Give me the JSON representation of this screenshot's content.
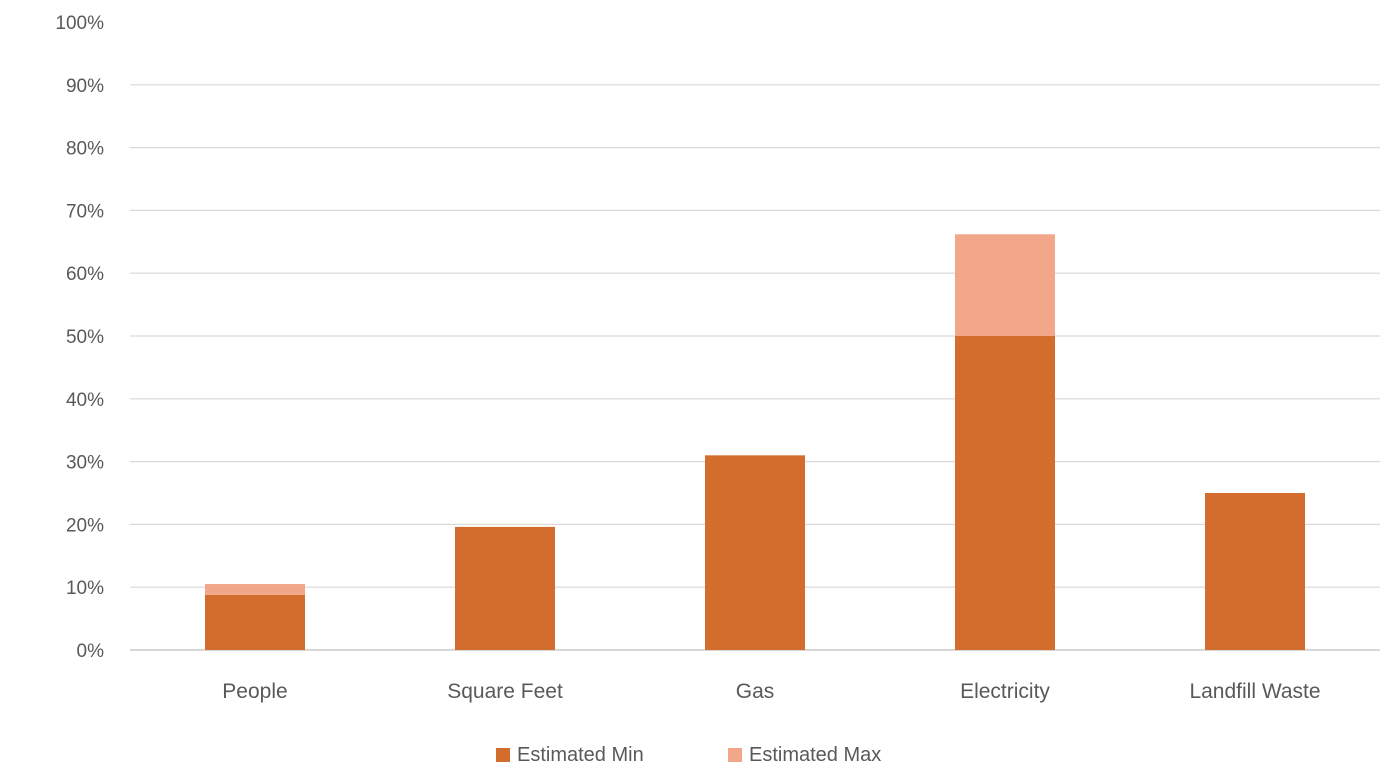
{
  "chart_data": {
    "type": "bar",
    "stacked": true,
    "title": "",
    "xlabel": "",
    "ylabel": "",
    "ylim": [
      0,
      100
    ],
    "y_ticks": [
      0,
      10,
      20,
      30,
      40,
      50,
      60,
      70,
      80,
      90,
      100
    ],
    "y_tick_labels": [
      "0%",
      "10%",
      "20%",
      "30%",
      "40%",
      "50%",
      "60%",
      "70%",
      "80%",
      "90%",
      "100%"
    ],
    "grid": true,
    "legend_position": "bottom",
    "categories": [
      "People",
      "Square Feet",
      "Gas",
      "Electricity",
      "Landfill Waste"
    ],
    "series": [
      {
        "name": "Estimated Min",
        "color": "#D36D2E",
        "values": [
          8.8,
          19.6,
          31.0,
          50.0,
          25.0
        ]
      },
      {
        "name": "Estimated Max",
        "color": "#F2A68A",
        "values": [
          1.7,
          0,
          0,
          16.2,
          0
        ]
      }
    ]
  }
}
